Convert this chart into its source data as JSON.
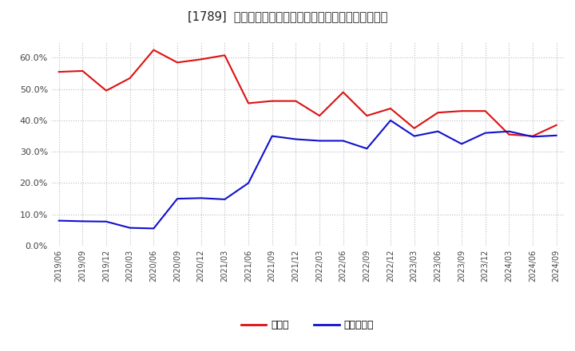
{
  "title": "[1789]  現預金、有利子負債の総資産に対する比率の推移",
  "ylim": [
    0.0,
    0.65
  ],
  "yticks": [
    0.0,
    0.1,
    0.2,
    0.3,
    0.4,
    0.5,
    0.6
  ],
  "background_color": "#ffffff",
  "plot_bg_color": "#ffffff",
  "grid_color": "#bbbbbb",
  "legend_labels": [
    "現預金",
    "有利子負債"
  ],
  "line_colors": [
    "#dd1111",
    "#1111cc"
  ],
  "dates": [
    "2019/06",
    "2019/09",
    "2019/12",
    "2020/03",
    "2020/06",
    "2020/09",
    "2020/12",
    "2021/03",
    "2021/06",
    "2021/09",
    "2021/12",
    "2022/03",
    "2022/06",
    "2022/09",
    "2022/12",
    "2023/03",
    "2023/06",
    "2023/09",
    "2023/12",
    "2024/03",
    "2024/06",
    "2024/09"
  ],
  "cash": [
    0.555,
    0.558,
    0.495,
    0.535,
    0.625,
    0.585,
    0.595,
    0.608,
    0.455,
    0.462,
    0.462,
    0.415,
    0.49,
    0.415,
    0.438,
    0.375,
    0.425,
    0.43,
    0.43,
    0.355,
    0.35,
    0.385
  ],
  "debt": [
    0.08,
    0.078,
    0.077,
    0.057,
    0.055,
    0.15,
    0.152,
    0.148,
    0.2,
    0.35,
    0.34,
    0.335,
    0.335,
    0.31,
    0.4,
    0.35,
    0.365,
    0.325,
    0.36,
    0.365,
    0.348,
    0.352
  ]
}
